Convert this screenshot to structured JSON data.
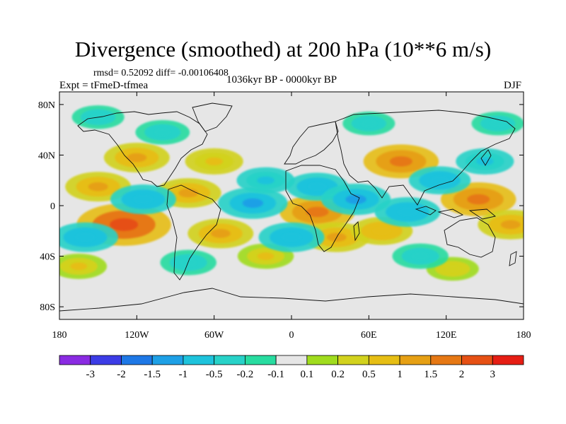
{
  "title": "Divergence (smoothed) at 200 hPa (10**6 m/s)",
  "stats": "rmsd= 0.52092 diff= -0.00106408",
  "experiment": "Expt = tFmeD-tfmea",
  "period": "1036kyr BP - 0000kyr BP",
  "season": "DJF",
  "chart_data": {
    "type": "heatmap",
    "title": "Divergence (smoothed) at 200 hPa (10**6 m/s)",
    "lon_range": [
      -180,
      180
    ],
    "lat_range": [
      -90,
      90
    ],
    "lat_ticks": [
      "80N",
      "40N",
      "0",
      "40S",
      "80S"
    ],
    "lat_tick_values": [
      80,
      40,
      0,
      -40,
      -80
    ],
    "lon_ticks": [
      "180",
      "120W",
      "60W",
      "0",
      "60E",
      "120E",
      "180"
    ],
    "lon_tick_values": [
      -180,
      -120,
      -60,
      0,
      60,
      120,
      180
    ],
    "colorbar": {
      "labels": [
        "-3",
        "-2",
        "-1.5",
        "-1",
        "-0.5",
        "-0.2",
        "-0.1",
        "0.1",
        "0.2",
        "0.5",
        "1",
        "1.5",
        "2",
        "3"
      ],
      "colors": [
        "#8a2be2",
        "#3c3ce6",
        "#1e78e6",
        "#1ea0e6",
        "#1ec3dc",
        "#28d2c8",
        "#28dca0",
        "#e6e6e6",
        "#a0dc1e",
        "#d2d21e",
        "#e6be14",
        "#e6a014",
        "#e67814",
        "#e65014",
        "#e61e14"
      ]
    },
    "anomalies": [
      {
        "lon": -130,
        "lat": -15,
        "value": 2.5
      },
      {
        "lon": -150,
        "lat": 15,
        "value": 1.0
      },
      {
        "lon": -120,
        "lat": 38,
        "value": 1.0
      },
      {
        "lon": -60,
        "lat": 35,
        "value": 0.6
      },
      {
        "lon": -80,
        "lat": 10,
        "value": 1.0
      },
      {
        "lon": -55,
        "lat": -22,
        "value": 1.0
      },
      {
        "lon": -20,
        "lat": -40,
        "value": 0.5
      },
      {
        "lon": 20,
        "lat": -5,
        "value": 1.5
      },
      {
        "lon": 35,
        "lat": -25,
        "value": 1.0
      },
      {
        "lon": 85,
        "lat": 35,
        "value": 1.5
      },
      {
        "lon": 70,
        "lat": -20,
        "value": 0.8
      },
      {
        "lon": 145,
        "lat": 5,
        "value": 1.5
      },
      {
        "lon": 170,
        "lat": -15,
        "value": 1.0
      },
      {
        "lon": 125,
        "lat": -50,
        "value": 0.3
      },
      {
        "lon": -165,
        "lat": -48,
        "value": 0.5
      },
      {
        "lon": -150,
        "lat": 70,
        "value": -0.3
      },
      {
        "lon": -100,
        "lat": 58,
        "value": -0.4
      },
      {
        "lon": -160,
        "lat": -25,
        "value": -1.0
      },
      {
        "lon": -115,
        "lat": 5,
        "value": -1.0
      },
      {
        "lon": -30,
        "lat": 2,
        "value": -1.2
      },
      {
        "lon": -20,
        "lat": 20,
        "value": -0.6
      },
      {
        "lon": 0,
        "lat": -25,
        "value": -1.0
      },
      {
        "lon": 20,
        "lat": 15,
        "value": -0.8
      },
      {
        "lon": 50,
        "lat": 5,
        "value": -1.2
      },
      {
        "lon": 90,
        "lat": -5,
        "value": -1.0
      },
      {
        "lon": 115,
        "lat": 20,
        "value": -0.8
      },
      {
        "lon": 150,
        "lat": 35,
        "value": -0.6
      },
      {
        "lon": 160,
        "lat": 65,
        "value": -0.3
      },
      {
        "lon": 60,
        "lat": 65,
        "value": -0.3
      },
      {
        "lon": 100,
        "lat": -40,
        "value": -0.5
      },
      {
        "lon": -80,
        "lat": -45,
        "value": -0.5
      }
    ]
  }
}
